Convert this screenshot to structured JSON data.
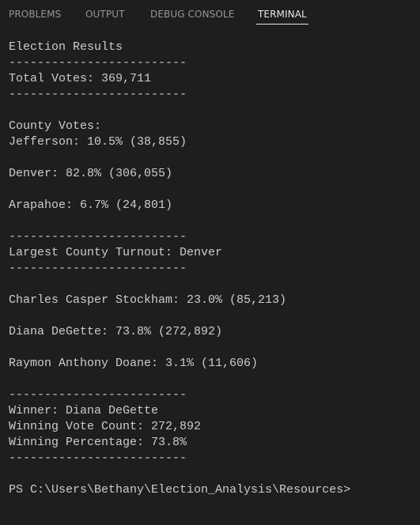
{
  "tabs": [
    {
      "label": "PROBLEMS"
    },
    {
      "label": "OUTPUT"
    },
    {
      "label": "DEBUG CONSOLE"
    },
    {
      "label": "TERMINAL",
      "active": true
    }
  ],
  "terminal": {
    "lines": [
      "Election Results",
      "-------------------------",
      "Total Votes: 369,711",
      "-------------------------",
      "County Votes:",
      "Jefferson: 10.5% (38,855)",
      "Denver: 82.8% (306,055)",
      "Arapahoe: 6.7% (24,801)",
      "-------------------------",
      "Largest County Turnout: Denver",
      "-------------------------",
      "Charles Casper Stockham: 23.0% (85,213)",
      "Diana DeGette: 73.8% (272,892)",
      "Raymon Anthony Doane: 3.1% (11,606)",
      "-------------------------",
      "Winner: Diana DeGette",
      "Winning Vote Count: 272,892",
      "Winning Percentage: 73.8%",
      "-------------------------",
      "PS C:\\Users\\Bethany\\Election_Analysis\\Resources>"
    ]
  }
}
